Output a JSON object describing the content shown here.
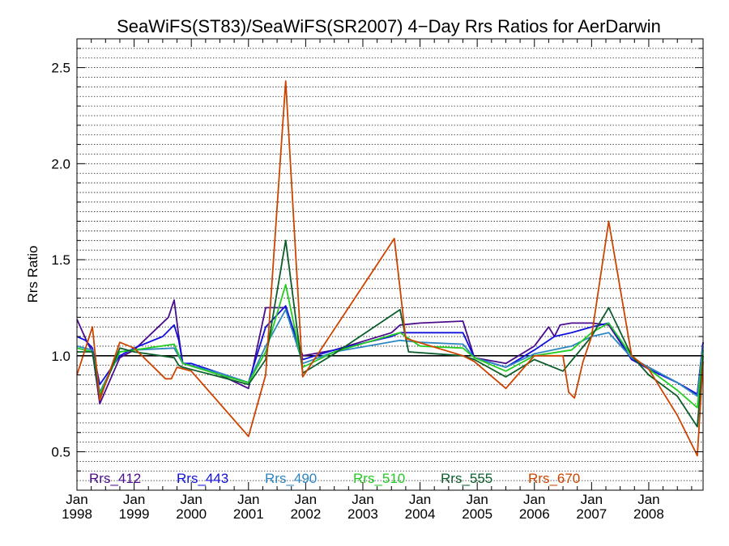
{
  "chart_data": {
    "type": "line",
    "title": "SeaWiFS(ST83)/SeaWiFS(SR2007) 4−Day Rrs Ratios for AerDarwin",
    "xlabel": "",
    "ylabel": "Rrs Ratio",
    "ylim": [
      0.3,
      2.65
    ],
    "xlim": [
      1998.0,
      2008.95
    ],
    "yticks": [
      "0.5",
      "1.0",
      "1.5",
      "2.0",
      "2.5"
    ],
    "xticks": [
      {
        "month": "Jan",
        "year": "1998"
      },
      {
        "month": "Jan",
        "year": "1999"
      },
      {
        "month": "Jan",
        "year": "2000"
      },
      {
        "month": "Jan",
        "year": "2001"
      },
      {
        "month": "Jan",
        "year": "2002"
      },
      {
        "month": "Jan",
        "year": "2003"
      },
      {
        "month": "Jan",
        "year": "2004"
      },
      {
        "month": "Jan",
        "year": "2005"
      },
      {
        "month": "Jan",
        "year": "2006"
      },
      {
        "month": "Jan",
        "year": "2007"
      },
      {
        "month": "Jan",
        "year": "2008"
      }
    ],
    "reference_line": 1.0,
    "grid": "horizontal dotted",
    "legend_position": "bottom",
    "series": [
      {
        "name": "Rrs_412",
        "color": "#4b0c8c",
        "points": [
          [
            1998.0,
            1.19
          ],
          [
            1998.18,
            1.07
          ],
          [
            1998.27,
            1.02
          ],
          [
            1998.4,
            0.75
          ],
          [
            1998.75,
            0.99
          ],
          [
            1999.0,
            1.03
          ],
          [
            1999.6,
            1.2
          ],
          [
            1999.7,
            1.29
          ],
          [
            1999.78,
            1.1
          ],
          [
            1999.85,
            0.96
          ],
          [
            2000.0,
            0.95
          ],
          [
            2000.5,
            0.9
          ],
          [
            2001.0,
            0.83
          ],
          [
            2001.3,
            1.25
          ],
          [
            2001.65,
            1.25
          ],
          [
            2001.95,
            1.0
          ],
          [
            2002.5,
            1.03
          ],
          [
            2003.5,
            1.12
          ],
          [
            2003.65,
            1.16
          ],
          [
            2004.0,
            1.17
          ],
          [
            2004.75,
            1.18
          ],
          [
            2004.95,
            0.99
          ],
          [
            2005.5,
            0.96
          ],
          [
            2006.0,
            1.05
          ],
          [
            2006.25,
            1.15
          ],
          [
            2006.35,
            1.1
          ],
          [
            2006.45,
            1.16
          ],
          [
            2006.65,
            1.17
          ],
          [
            2007.0,
            1.17
          ],
          [
            2007.3,
            1.16
          ],
          [
            2007.7,
            0.98
          ],
          [
            2008.0,
            0.94
          ],
          [
            2008.5,
            0.86
          ],
          [
            2008.85,
            0.8
          ],
          [
            2008.95,
            1.07
          ]
        ]
      },
      {
        "name": "Rrs_443",
        "color": "#1010dc",
        "points": [
          [
            1998.0,
            1.1
          ],
          [
            1998.15,
            1.08
          ],
          [
            1998.27,
            1.04
          ],
          [
            1998.4,
            0.85
          ],
          [
            1998.75,
            1.0
          ],
          [
            1999.0,
            1.04
          ],
          [
            1999.5,
            1.1
          ],
          [
            1999.7,
            1.16
          ],
          [
            1999.78,
            1.08
          ],
          [
            1999.85,
            0.96
          ],
          [
            2000.0,
            0.96
          ],
          [
            2000.5,
            0.91
          ],
          [
            2001.0,
            0.86
          ],
          [
            2001.3,
            1.15
          ],
          [
            2001.65,
            1.26
          ],
          [
            2001.95,
            0.98
          ],
          [
            2002.5,
            1.03
          ],
          [
            2003.5,
            1.1
          ],
          [
            2003.65,
            1.12
          ],
          [
            2004.0,
            1.12
          ],
          [
            2004.75,
            1.12
          ],
          [
            2004.95,
            0.99
          ],
          [
            2005.5,
            0.94
          ],
          [
            2006.0,
            1.03
          ],
          [
            2006.35,
            1.1
          ],
          [
            2006.65,
            1.12
          ],
          [
            2007.0,
            1.15
          ],
          [
            2007.3,
            1.17
          ],
          [
            2007.7,
            0.98
          ],
          [
            2008.0,
            0.93
          ],
          [
            2008.5,
            0.86
          ],
          [
            2008.85,
            0.8
          ],
          [
            2008.95,
            1.07
          ]
        ]
      },
      {
        "name": "Rrs_490",
        "color": "#2e86c1",
        "points": [
          [
            1998.0,
            1.05
          ],
          [
            1998.27,
            1.03
          ],
          [
            1998.4,
            0.81
          ],
          [
            1998.75,
            1.02
          ],
          [
            1999.0,
            1.03
          ],
          [
            1999.7,
            1.04
          ],
          [
            1999.85,
            0.96
          ],
          [
            2000.5,
            0.91
          ],
          [
            2001.0,
            0.86
          ],
          [
            2001.3,
            1.05
          ],
          [
            2001.65,
            1.24
          ],
          [
            2001.95,
            0.96
          ],
          [
            2002.5,
            1.02
          ],
          [
            2003.65,
            1.08
          ],
          [
            2004.0,
            1.07
          ],
          [
            2004.75,
            1.06
          ],
          [
            2004.95,
            0.99
          ],
          [
            2005.5,
            0.94
          ],
          [
            2006.0,
            1.01
          ],
          [
            2006.65,
            1.05
          ],
          [
            2007.0,
            1.1
          ],
          [
            2007.3,
            1.12
          ],
          [
            2007.7,
            0.99
          ],
          [
            2008.0,
            0.94
          ],
          [
            2008.5,
            0.86
          ],
          [
            2008.85,
            0.79
          ],
          [
            2008.95,
            1.05
          ]
        ]
      },
      {
        "name": "Rrs_510",
        "color": "#22cc22",
        "points": [
          [
            1998.0,
            1.04
          ],
          [
            1998.27,
            1.02
          ],
          [
            1998.4,
            0.8
          ],
          [
            1998.75,
            1.02
          ],
          [
            1999.0,
            1.03
          ],
          [
            1999.7,
            1.06
          ],
          [
            1999.85,
            0.96
          ],
          [
            2000.5,
            0.9
          ],
          [
            2001.0,
            0.86
          ],
          [
            2001.3,
            1.02
          ],
          [
            2001.65,
            1.37
          ],
          [
            2001.95,
            0.94
          ],
          [
            2002.5,
            1.02
          ],
          [
            2003.65,
            1.12
          ],
          [
            2004.0,
            1.05
          ],
          [
            2004.75,
            1.04
          ],
          [
            2004.95,
            0.99
          ],
          [
            2005.5,
            0.92
          ],
          [
            2006.0,
            1.0
          ],
          [
            2006.65,
            1.03
          ],
          [
            2007.0,
            1.12
          ],
          [
            2007.3,
            1.17
          ],
          [
            2007.7,
            1.0
          ],
          [
            2008.0,
            0.93
          ],
          [
            2008.5,
            0.82
          ],
          [
            2008.85,
            0.73
          ],
          [
            2008.95,
            1.03
          ]
        ]
      },
      {
        "name": "Rrs_555",
        "color": "#0b5e2b",
        "points": [
          [
            1998.0,
            1.02
          ],
          [
            1998.27,
            1.02
          ],
          [
            1998.4,
            0.78
          ],
          [
            1998.75,
            1.04
          ],
          [
            1999.0,
            1.02
          ],
          [
            1999.7,
            0.99
          ],
          [
            1999.78,
            0.95
          ],
          [
            1999.85,
            0.94
          ],
          [
            2000.5,
            0.89
          ],
          [
            2001.0,
            0.85
          ],
          [
            2001.3,
            0.98
          ],
          [
            2001.65,
            1.6
          ],
          [
            2001.95,
            0.91
          ],
          [
            2002.5,
            1.01
          ],
          [
            2003.65,
            1.24
          ],
          [
            2003.8,
            1.02
          ],
          [
            2004.75,
            1.0
          ],
          [
            2004.95,
            0.98
          ],
          [
            2005.5,
            0.89
          ],
          [
            2006.0,
            0.98
          ],
          [
            2006.5,
            0.92
          ],
          [
            2007.0,
            1.1
          ],
          [
            2007.3,
            1.25
          ],
          [
            2007.7,
            1.0
          ],
          [
            2008.0,
            0.9
          ],
          [
            2008.5,
            0.79
          ],
          [
            2008.85,
            0.63
          ],
          [
            2008.95,
            1.0
          ]
        ]
      },
      {
        "name": "Rrs_670",
        "color": "#cc4400",
        "points": [
          [
            1998.0,
            0.9
          ],
          [
            1998.27,
            1.15
          ],
          [
            1998.4,
            0.77
          ],
          [
            1998.75,
            1.07
          ],
          [
            1999.0,
            1.04
          ],
          [
            1999.55,
            0.88
          ],
          [
            1999.65,
            0.88
          ],
          [
            1999.75,
            0.94
          ],
          [
            2000.0,
            0.92
          ],
          [
            2001.0,
            0.58
          ],
          [
            2001.3,
            0.9
          ],
          [
            2001.65,
            2.43
          ],
          [
            2001.95,
            0.89
          ],
          [
            2003.55,
            1.61
          ],
          [
            2003.75,
            1.09
          ],
          [
            2004.75,
            1.0
          ],
          [
            2004.95,
            0.97
          ],
          [
            2005.5,
            0.83
          ],
          [
            2006.0,
            1.0
          ],
          [
            2006.5,
            1.0
          ],
          [
            2006.6,
            0.81
          ],
          [
            2006.7,
            0.78
          ],
          [
            2006.85,
            0.97
          ],
          [
            2007.0,
            1.1
          ],
          [
            2007.3,
            1.7
          ],
          [
            2007.7,
            1.0
          ],
          [
            2008.0,
            0.93
          ],
          [
            2008.5,
            0.69
          ],
          [
            2008.85,
            0.48
          ],
          [
            2008.95,
            0.97
          ]
        ]
      }
    ]
  }
}
